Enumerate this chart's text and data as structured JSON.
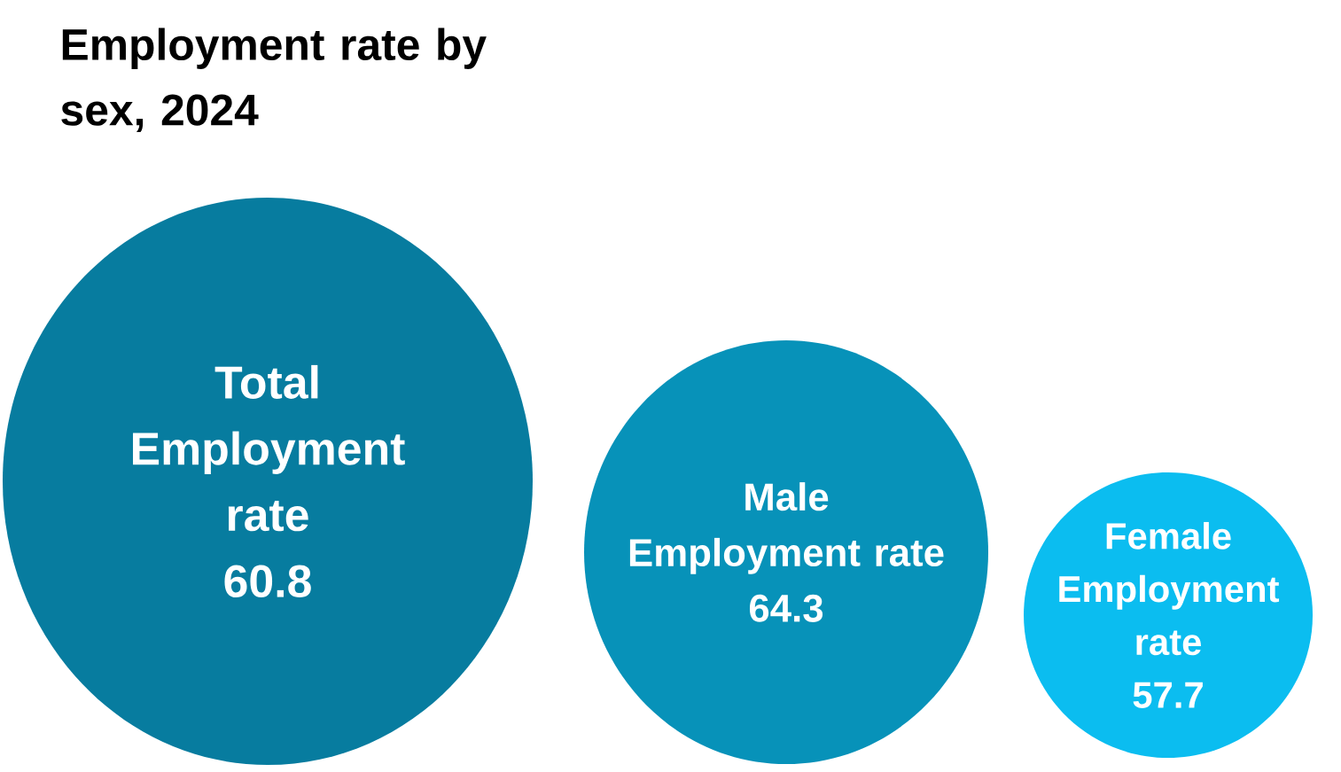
{
  "chart_data": {
    "type": "other",
    "title": "Employment rate by sex, 2024",
    "categories": [
      "Total Employment rate",
      "Male Employment rate",
      "Female Employment rate"
    ],
    "values": [
      60.8,
      64.3,
      57.7
    ],
    "colors": [
      "#077c9f",
      "#0792b9",
      "#0bbdf0"
    ],
    "data_labels": true
  }
}
